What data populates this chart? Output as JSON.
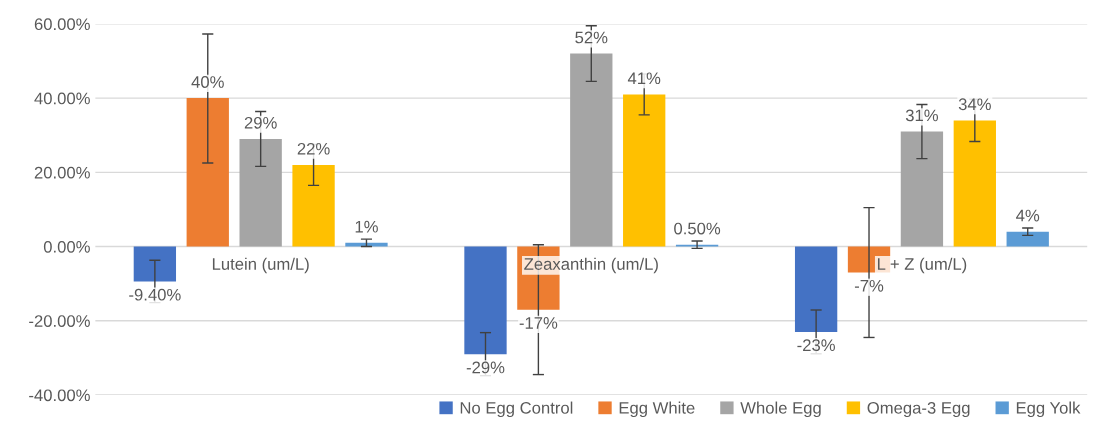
{
  "chart_data": {
    "type": "bar",
    "categories": [
      "Lutein (um/L)",
      "Zeaxanthin (um/L)",
      "L + Z (um/L)"
    ],
    "series": [
      {
        "name": "No Egg Control",
        "color": "#4472c4",
        "values": [
          -9.4,
          -29,
          -23
        ],
        "value_labels": [
          "-9.40%",
          "-29%",
          "-23%"
        ],
        "errors": [
          [
            -15.1,
            -3.7
          ],
          [
            -34.8,
            -23.2
          ],
          [
            -28.9,
            -17.1
          ]
        ]
      },
      {
        "name": "Egg White",
        "color": "#ed7d31",
        "values": [
          40,
          -17,
          -7
        ],
        "value_labels": [
          "40%",
          "-17%",
          "-7%"
        ],
        "errors": [
          [
            22.5,
            57.3
          ],
          [
            -34.5,
            0.5
          ],
          [
            -24.5,
            10.5
          ]
        ]
      },
      {
        "name": "Whole Egg",
        "color": "#a5a5a5",
        "values": [
          29,
          52,
          31
        ],
        "value_labels": [
          "29%",
          "52%",
          "31%"
        ],
        "errors": [
          [
            21.6,
            36.4
          ],
          [
            44.5,
            59.5
          ],
          [
            23.7,
            38.3
          ]
        ]
      },
      {
        "name": "Omega-3 Egg",
        "color": "#ffc000",
        "values": [
          22,
          41,
          34
        ],
        "value_labels": [
          "22%",
          "41%",
          "34%"
        ],
        "errors": [
          [
            16.5,
            27.5
          ],
          [
            35.5,
            46.5
          ],
          [
            28.3,
            39.7
          ]
        ]
      },
      {
        "name": "Egg Yolk",
        "color": "#5b9bd5",
        "values": [
          1,
          0.5,
          4
        ],
        "value_labels": [
          "1%",
          "0.50%",
          "4%"
        ],
        "errors": [
          [
            0,
            2
          ],
          [
            -0.5,
            1.5
          ],
          [
            3,
            5
          ]
        ]
      }
    ],
    "ylim": [
      -40,
      60
    ],
    "yticks": [
      {
        "value": -40,
        "label": "-40.00%"
      },
      {
        "value": -20,
        "label": "-20.00%"
      },
      {
        "value": 0,
        "label": "0.00%"
      },
      {
        "value": 20,
        "label": "20.00%"
      },
      {
        "value": 40,
        "label": "40.00%"
      },
      {
        "value": 60,
        "label": "60.00%"
      }
    ],
    "grid": "y",
    "legend": "bottom"
  }
}
